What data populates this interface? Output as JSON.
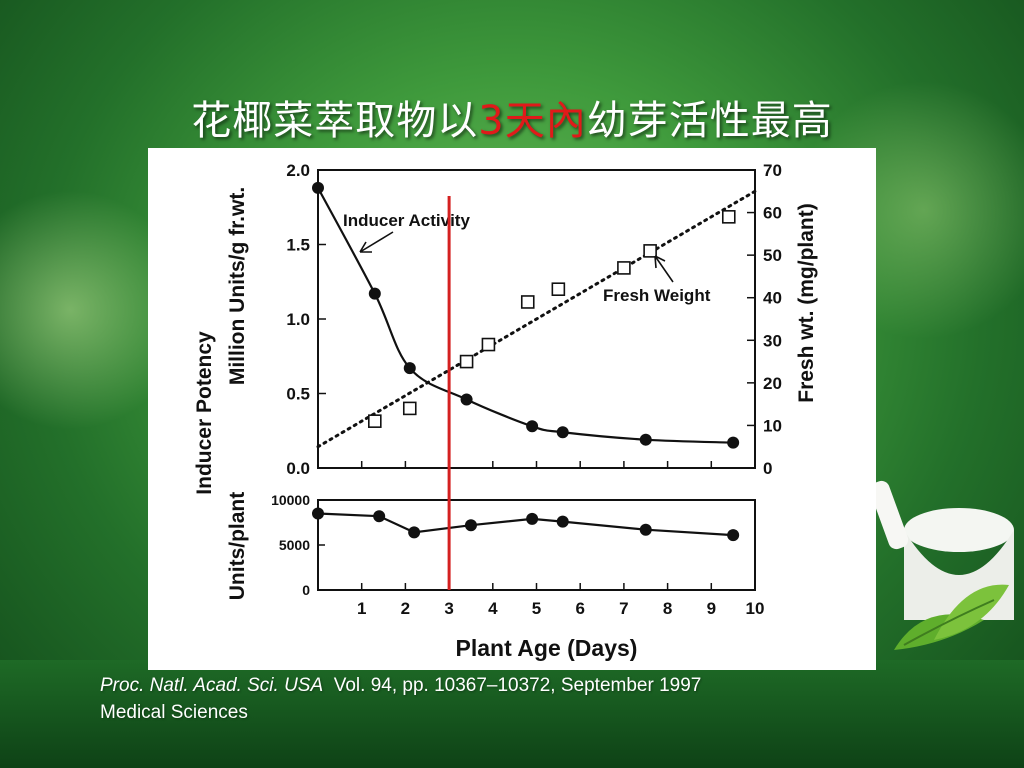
{
  "slide": {
    "title_pre": "花椰菜萃取物以",
    "title_highlight": "3天內",
    "title_post": "幼芽活性最高",
    "citation_journal": "Proc. Natl. Acad. Sci. USA",
    "citation_rest": "Vol. 94, pp. 10367–10372, September 1997",
    "citation_line2": "Medical Sciences",
    "highlight_color": "#e01a1a"
  },
  "chart_data": [
    {
      "type": "line",
      "panel": "top",
      "xlabel": "Plant Age (Days)",
      "ylabel_left_line1": "Inducer Potency",
      "ylabel_left_line2": "Million Units/g fr.wt.",
      "ylabel_right": "Fresh wt. (mg/plant)",
      "xlim": [
        0,
        10
      ],
      "ylim_left": [
        0,
        2.0
      ],
      "ylim_right": [
        0,
        70
      ],
      "yticks_left": [
        "0.0",
        "0.5",
        "1.0",
        "1.5",
        "2.0"
      ],
      "yticks_right": [
        "0",
        "10",
        "20",
        "30",
        "40",
        "50",
        "60",
        "70"
      ],
      "series": [
        {
          "name": "Inducer Activity",
          "marker": "filled-circle",
          "line": "solid",
          "x": [
            0,
            1.3,
            2.1,
            3.4,
            4.9,
            5.6,
            7.5,
            9.5
          ],
          "y": [
            1.88,
            1.17,
            0.67,
            0.46,
            0.28,
            0.24,
            0.19,
            0.17
          ]
        },
        {
          "name": "Fresh Weight",
          "marker": "open-square",
          "line": "dotted-fit",
          "axis": "right",
          "x": [
            1.3,
            2.1,
            3.4,
            3.9,
            4.8,
            5.5,
            7.0,
            7.6,
            9.4
          ],
          "y": [
            11,
            14,
            25,
            29,
            39,
            42,
            47,
            51,
            59
          ],
          "fit_line": {
            "x": [
              0,
              10
            ],
            "y": [
              5,
              65
            ]
          }
        }
      ],
      "annotation_x": 3,
      "annotation_color": "#d42020"
    },
    {
      "type": "line",
      "panel": "bottom",
      "ylabel": "Units/plant",
      "xlabel": "Plant Age (Days)",
      "xlim": [
        0,
        10
      ],
      "ylim": [
        0,
        10000
      ],
      "yticks": [
        "0",
        "5000",
        "10000"
      ],
      "xticks": [
        "1",
        "2",
        "3",
        "4",
        "5",
        "6",
        "7",
        "8",
        "9",
        "10"
      ],
      "series": [
        {
          "marker": "filled-circle",
          "line": "solid",
          "x": [
            0,
            1.4,
            2.2,
            3.5,
            4.9,
            5.6,
            7.5,
            9.5
          ],
          "y": [
            8500,
            8200,
            6400,
            7200,
            7900,
            7600,
            6700,
            6100
          ]
        }
      ]
    }
  ]
}
